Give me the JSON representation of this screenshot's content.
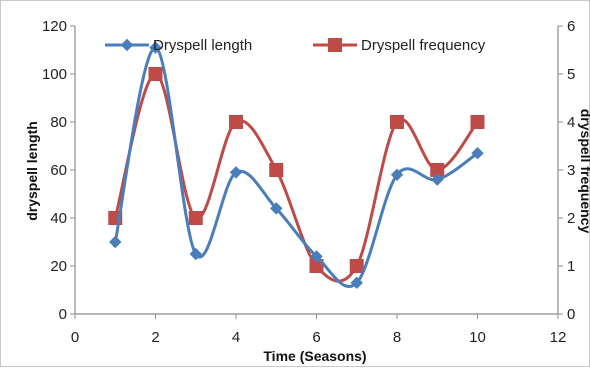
{
  "chart_data": {
    "type": "line",
    "smooth": true,
    "title": "",
    "xlabel": "Time (Seasons)",
    "ylabel": "dryspell length",
    "y2label": "dryspell frequency",
    "xlim": [
      0,
      12
    ],
    "xticks": [
      0,
      2,
      4,
      6,
      8,
      10,
      12
    ],
    "ylim": [
      0,
      120
    ],
    "yticks": [
      0,
      20,
      40,
      60,
      80,
      100,
      120
    ],
    "y2lim": [
      0,
      6
    ],
    "y2ticks": [
      0,
      1,
      2,
      3,
      4,
      5,
      6
    ],
    "grid": false,
    "legend": "top",
    "series": [
      {
        "name": "Dryspell length",
        "axis": "left",
        "color": "#4a7ebb",
        "marker": "diamond",
        "x": [
          1,
          2,
          3,
          4,
          5,
          6,
          7,
          8,
          9,
          10
        ],
        "values": [
          30,
          111,
          25,
          59,
          44,
          24,
          13,
          58,
          56,
          67
        ]
      },
      {
        "name": "Dryspell frequency",
        "axis": "right",
        "color": "#be4b48",
        "marker": "square",
        "x": [
          1,
          2,
          3,
          4,
          5,
          6,
          7,
          8,
          9,
          10
        ],
        "values": [
          2,
          5,
          2,
          4,
          3,
          1,
          1,
          4,
          3,
          4
        ]
      }
    ]
  }
}
